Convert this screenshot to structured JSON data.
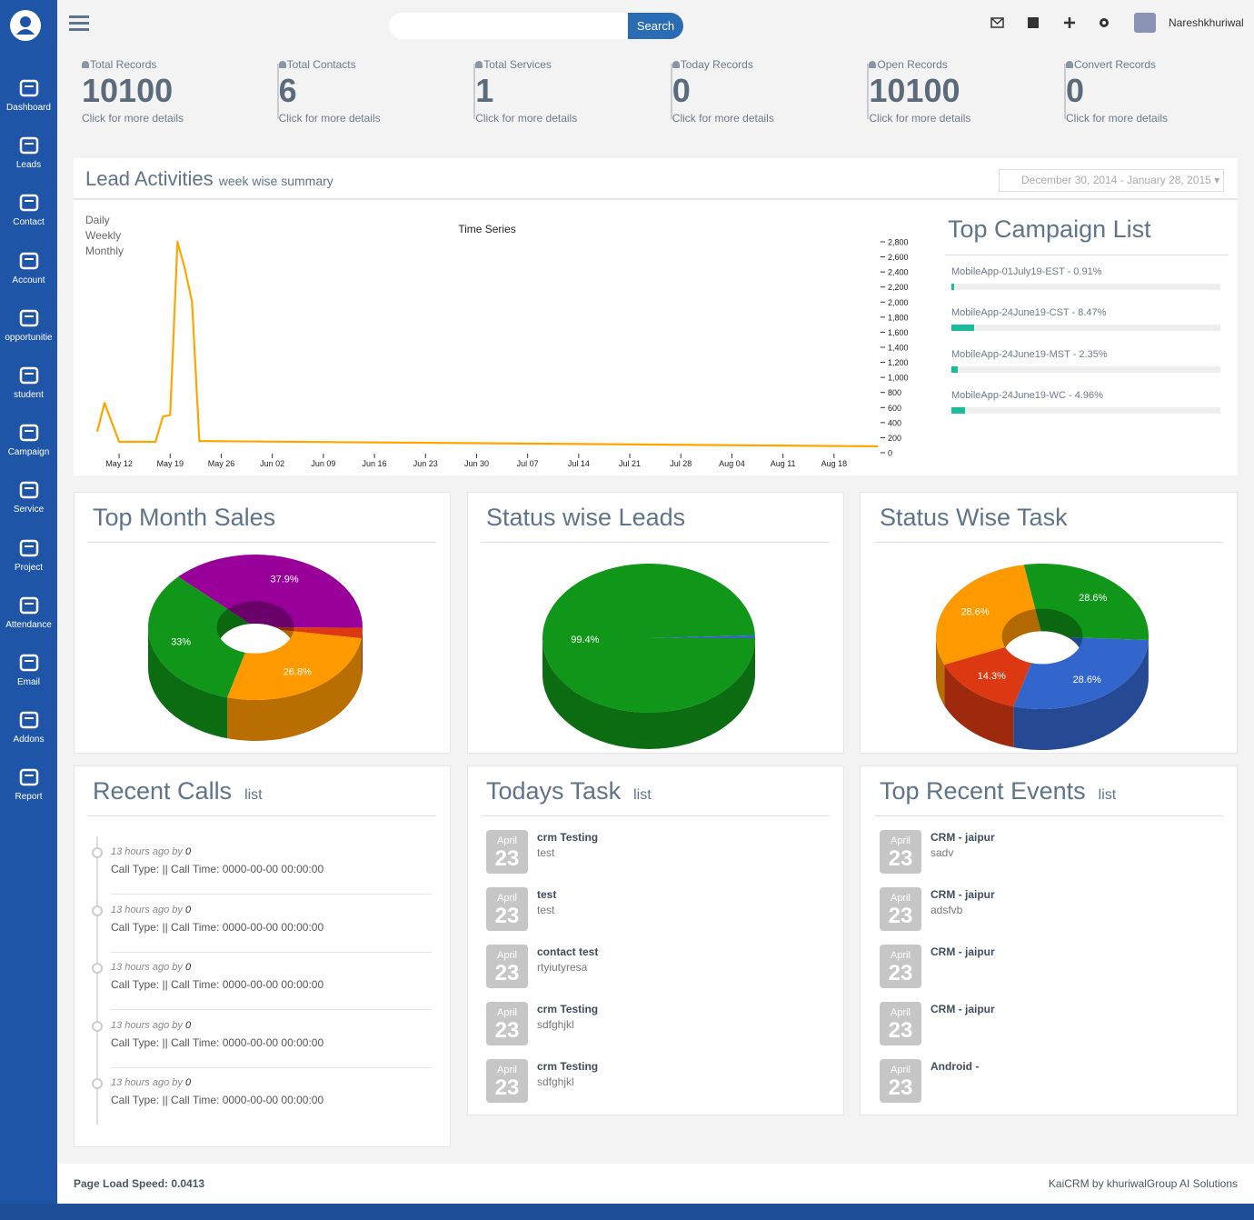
{
  "sidebar": {
    "items": [
      "Dashboard",
      "Leads",
      "Contact",
      "Account",
      "opportunitie",
      "student",
      "Campaign",
      "Service",
      "Project",
      "Attendance",
      "Email",
      "Addons",
      "Report"
    ]
  },
  "topbar": {
    "search_button": "Search",
    "user": "Nareshkhuriwal"
  },
  "stats": [
    {
      "label": "Total Records",
      "value": 10100,
      "link": "Click for more details"
    },
    {
      "label": "Total Contacts",
      "value": 6,
      "link": "Click for more details"
    },
    {
      "label": "Total Services",
      "value": 1,
      "link": "Click for more details"
    },
    {
      "label": "Today Records",
      "value": 0,
      "link": "Click for more details"
    },
    {
      "label": "Open Records",
      "value": 10100,
      "link": "Click for more details"
    },
    {
      "label": "Convert Records",
      "value": 0,
      "link": "Click for more details"
    }
  ],
  "lead_activities": {
    "title": "Lead Activities",
    "subtitle": "week wise summary",
    "date_range": "December 30, 2014 - January 28, 2015",
    "periods": [
      "Daily",
      "Weekly",
      "Monthly"
    ],
    "chart": {
      "type": "line",
      "title": "Time Series",
      "color": "#ffa500",
      "x": [
        -3,
        -2,
        0,
        5,
        6,
        7,
        8,
        9,
        10,
        11,
        104
      ],
      "values": [
        280,
        660,
        145,
        145,
        480,
        500,
        2800,
        2450,
        2000,
        155,
        85
      ],
      "xlim": [
        -3,
        104
      ],
      "xticks": [
        {
          "value": 0,
          "label": "May 12"
        },
        {
          "value": 7,
          "label": "May 19"
        },
        {
          "value": 14,
          "label": "May 26"
        },
        {
          "value": 21,
          "label": "Jun 02"
        },
        {
          "value": 28,
          "label": "Jun 09"
        },
        {
          "value": 35,
          "label": "Jun 16"
        },
        {
          "value": 42,
          "label": "Jun 23"
        },
        {
          "value": 49,
          "label": "Jun 30"
        },
        {
          "value": 56,
          "label": "Jul 07"
        },
        {
          "value": 63,
          "label": "Jul 14"
        },
        {
          "value": 70,
          "label": "Jul 21"
        },
        {
          "value": 77,
          "label": "Jul 28"
        },
        {
          "value": 84,
          "label": "Aug 04"
        },
        {
          "value": 91,
          "label": "Aug 11"
        },
        {
          "value": 98,
          "label": "Aug 18"
        }
      ],
      "ylim": [
        0,
        2800
      ],
      "yticks": [
        0,
        200,
        400,
        600,
        800,
        {
          "value": 1000,
          "label": "1,000"
        },
        {
          "value": 1200,
          "label": "1,200"
        },
        {
          "value": 1400,
          "label": "1,400"
        },
        {
          "value": 1600,
          "label": "1,600"
        },
        {
          "value": 1800,
          "label": "1,800"
        },
        {
          "value": 2000,
          "label": "2,000"
        },
        {
          "value": 2200,
          "label": "2,200"
        },
        {
          "value": 2400,
          "label": "2,400"
        },
        {
          "value": 2600,
          "label": "2,600"
        },
        {
          "value": 2800,
          "label": "2,800"
        }
      ]
    }
  },
  "campaigns": {
    "title": "Top Campaign List",
    "items": [
      {
        "label": "MobileApp-01July19-EST - 0.91%",
        "value": 0.91
      },
      {
        "label": "MobileApp-24June19-CST - 8.47%",
        "value": 8.47
      },
      {
        "label": "MobileApp-24June19-MST - 2.35%",
        "value": 2.35
      },
      {
        "label": "MobileApp-24June19-WC - 4.96%",
        "value": 4.96
      }
    ]
  },
  "pies": [
    {
      "type": "pie",
      "title": "Top Month Sales",
      "donut": true,
      "values": [
        37.9,
        2.3,
        26.8,
        33
      ],
      "value_labels": [
        "37.9%",
        null,
        "26.8%",
        "33%"
      ],
      "colors": [
        "#990099",
        "#dc3912",
        "#ff9900",
        "#109618"
      ]
    },
    {
      "type": "pie",
      "title": "Status wise Leads",
      "donut": false,
      "values": [
        99.4,
        0.6
      ],
      "value_labels": [
        "99.4%",
        null
      ],
      "colors": [
        "#109618",
        "#3366cc"
      ]
    },
    {
      "type": "pie",
      "title": "Status Wise Task",
      "donut": true,
      "values": [
        28.6,
        28.6,
        14.3,
        28.6
      ],
      "value_labels": [
        "28.6%",
        "28.6%",
        "14.3%",
        "28.6%"
      ],
      "colors": [
        "#109618",
        "#3366cc",
        "#dc3912",
        "#ff9900"
      ]
    }
  ],
  "recent_calls": {
    "title": "Recent Calls",
    "subtitle": "list",
    "items": [
      {
        "time": "13 hours ago by",
        "user": "0",
        "text": "Call Type: || Call Time: 0000-00-00 00:00:00"
      },
      {
        "time": "13 hours ago by",
        "user": "0",
        "text": "Call Type: || Call Time: 0000-00-00 00:00:00"
      },
      {
        "time": "13 hours ago by",
        "user": "0",
        "text": "Call Type: || Call Time: 0000-00-00 00:00:00"
      },
      {
        "time": "13 hours ago by",
        "user": "0",
        "text": "Call Type: || Call Time: 0000-00-00 00:00:00"
      },
      {
        "time": "13 hours ago by",
        "user": "0",
        "text": "Call Type: || Call Time: 0000-00-00 00:00:00"
      }
    ]
  },
  "todays_task": {
    "title": "Todays Task",
    "subtitle": "list",
    "items": [
      {
        "month": "April",
        "day": 23,
        "title": "crm Testing",
        "desc": "test"
      },
      {
        "month": "April",
        "day": 23,
        "title": "test",
        "desc": "test"
      },
      {
        "month": "April",
        "day": 23,
        "title": "contact test",
        "desc": "rtyiutyresa"
      },
      {
        "month": "April",
        "day": 23,
        "title": "crm Testing",
        "desc": "sdfghjkl"
      },
      {
        "month": "April",
        "day": 23,
        "title": "crm Testing",
        "desc": "sdfghjkl"
      }
    ]
  },
  "recent_events": {
    "title": "Top Recent Events",
    "subtitle": "list",
    "items": [
      {
        "month": "April",
        "day": 23,
        "title": "CRM - jaipur",
        "desc": "sadv"
      },
      {
        "month": "April",
        "day": 23,
        "title": "CRM - jaipur",
        "desc": "adsfvb"
      },
      {
        "month": "April",
        "day": 23,
        "title": "CRM - jaipur"
      },
      {
        "month": "April",
        "day": 23,
        "title": "CRM - jaipur"
      },
      {
        "month": "April",
        "day": 23,
        "title": "Android -"
      }
    ]
  },
  "footer": {
    "load_speed_label": "Page Load Speed:",
    "load_speed": 0.0413,
    "credit": "KaiCRM by khuriwalGroup AI Solutions"
  }
}
